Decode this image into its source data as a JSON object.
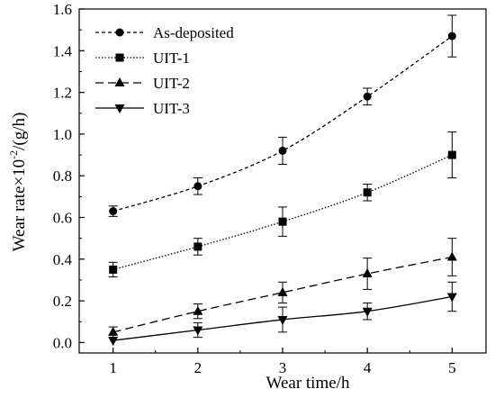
{
  "chart_data": {
    "type": "line",
    "title": "",
    "xlabel": "Wear time/h",
    "ylabel": {
      "prefix": "Wear rate×10",
      "superscript": "-2",
      "suffix": "/(g/h)"
    },
    "xlim": [
      0.6,
      5.4
    ],
    "ylim": [
      -0.05,
      1.6
    ],
    "x_ticks": [
      "1",
      "2",
      "3",
      "4",
      "5"
    ],
    "y_ticks": [
      "0.0",
      "0.2",
      "0.4",
      "0.6",
      "0.8",
      "1.0",
      "1.2",
      "1.4",
      "1.6"
    ],
    "grid": false,
    "legend_position": "top-left",
    "x": [
      1,
      2,
      3,
      4,
      5
    ],
    "series": [
      {
        "name": "As-deposited",
        "marker": "circle",
        "line_style": "short-dash",
        "values": [
          0.63,
          0.75,
          0.92,
          1.18,
          1.47
        ],
        "errors": [
          0.025,
          0.04,
          0.065,
          0.04,
          0.1
        ]
      },
      {
        "name": "UIT-1",
        "marker": "square",
        "line_style": "dotted",
        "values": [
          0.35,
          0.46,
          0.58,
          0.72,
          0.9
        ],
        "errors": [
          0.035,
          0.04,
          0.07,
          0.04,
          0.11
        ]
      },
      {
        "name": "UIT-2",
        "marker": "triangle-up",
        "line_style": "dashed",
        "values": [
          0.05,
          0.15,
          0.24,
          0.33,
          0.41
        ],
        "errors": [
          0.025,
          0.035,
          0.05,
          0.075,
          0.09
        ]
      },
      {
        "name": "UIT-3",
        "marker": "triangle-down",
        "line_style": "solid",
        "values": [
          0.01,
          0.06,
          0.11,
          0.15,
          0.22
        ],
        "errors": [
          0.0,
          0.035,
          0.06,
          0.04,
          0.07
        ]
      }
    ]
  }
}
